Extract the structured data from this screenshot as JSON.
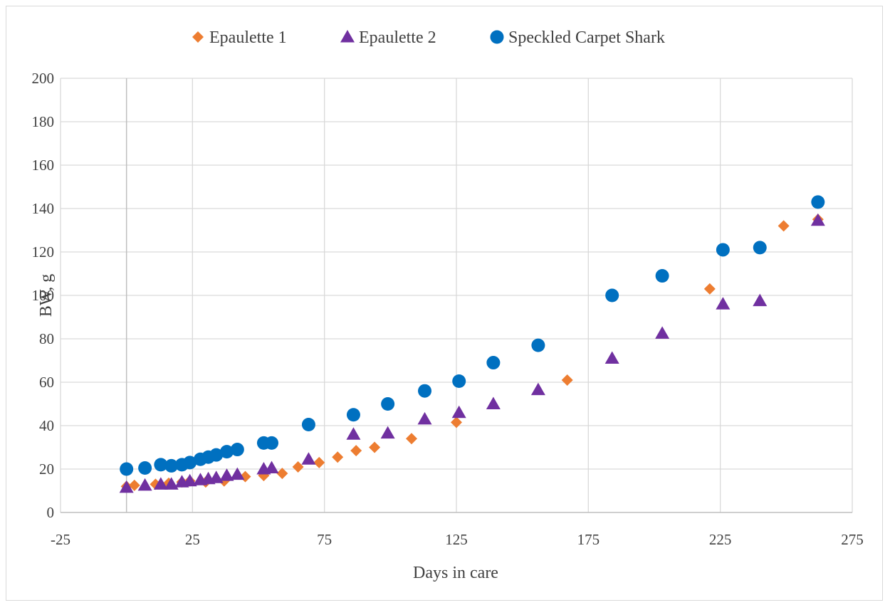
{
  "chart_data": {
    "type": "scatter",
    "title": "",
    "xlabel": "Days in care",
    "ylabel": "BW, g",
    "xlim": [
      -25,
      275
    ],
    "ylim": [
      0,
      200
    ],
    "xticks": [
      -25,
      25,
      75,
      125,
      175,
      225,
      275
    ],
    "yticks": [
      0,
      20,
      40,
      60,
      80,
      100,
      120,
      140,
      160,
      180,
      200
    ],
    "grid": true,
    "legend_position": "top",
    "series": [
      {
        "name": "Epaulette 1",
        "marker": "diamond",
        "color": "#ED7D31",
        "points": [
          [
            0,
            12
          ],
          [
            3,
            12.5
          ],
          [
            11,
            13
          ],
          [
            16,
            13.5
          ],
          [
            21,
            14
          ],
          [
            24,
            14.5
          ],
          [
            30,
            14
          ],
          [
            37,
            14.5
          ],
          [
            45,
            16.5
          ],
          [
            52,
            17
          ],
          [
            59,
            18
          ],
          [
            65,
            21
          ],
          [
            73,
            23
          ],
          [
            80,
            25.5
          ],
          [
            87,
            28.5
          ],
          [
            94,
            30
          ],
          [
            108,
            34
          ],
          [
            125,
            41.5
          ],
          [
            167,
            61
          ],
          [
            221,
            103
          ],
          [
            249,
            132
          ],
          [
            262,
            135
          ]
        ]
      },
      {
        "name": "Epaulette 2",
        "marker": "triangle",
        "color": "#7030A0",
        "points": [
          [
            0,
            11.5
          ],
          [
            7,
            12.5
          ],
          [
            13,
            13
          ],
          [
            17,
            13
          ],
          [
            21,
            14
          ],
          [
            24,
            14.5
          ],
          [
            28,
            15
          ],
          [
            31,
            15.5
          ],
          [
            34,
            16
          ],
          [
            38,
            17
          ],
          [
            42,
            17.5
          ],
          [
            52,
            20
          ],
          [
            55,
            20.5
          ],
          [
            69,
            24.5
          ],
          [
            86,
            36
          ],
          [
            99,
            36.5
          ],
          [
            113,
            43
          ],
          [
            126,
            46
          ],
          [
            139,
            50
          ],
          [
            156,
            56.5
          ],
          [
            184,
            71
          ],
          [
            203,
            82.5
          ],
          [
            226,
            96
          ],
          [
            240,
            97.5
          ],
          [
            262,
            134.5
          ]
        ]
      },
      {
        "name": "Speckled Carpet Shark",
        "marker": "circle",
        "color": "#0070C0",
        "points": [
          [
            0,
            20
          ],
          [
            7,
            20.5
          ],
          [
            13,
            22
          ],
          [
            17,
            21.5
          ],
          [
            21,
            22
          ],
          [
            24,
            23
          ],
          [
            28,
            24.5
          ],
          [
            31,
            25.5
          ],
          [
            34,
            26.5
          ],
          [
            38,
            28
          ],
          [
            42,
            29
          ],
          [
            52,
            32
          ],
          [
            55,
            32
          ],
          [
            69,
            40.5
          ],
          [
            86,
            45
          ],
          [
            99,
            50
          ],
          [
            113,
            56
          ],
          [
            126,
            60.5
          ],
          [
            139,
            69
          ],
          [
            156,
            77
          ],
          [
            184,
            100
          ],
          [
            203,
            109
          ],
          [
            226,
            121
          ],
          [
            240,
            122
          ],
          [
            262,
            143
          ]
        ]
      }
    ]
  }
}
